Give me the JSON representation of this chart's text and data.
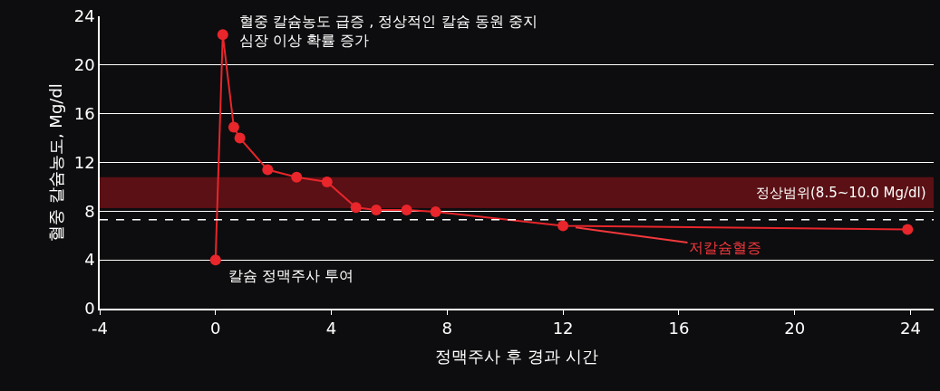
{
  "chart_data": {
    "type": "line",
    "xlabel": "정맥주사 후 경과 시간",
    "ylabel": "혈중 칼슘농도, Mg/dl",
    "x": [
      0,
      0.25,
      0.63,
      0.84,
      1.8,
      2.8,
      3.85,
      4.85,
      5.55,
      6.6,
      7.6,
      12,
      23.9
    ],
    "series": [
      {
        "color": "#e8262b",
        "values": [
          4,
          22.5,
          14.9,
          14.0,
          11.4,
          10.8,
          10.4,
          8.3,
          8.1,
          8.1,
          7.95,
          6.8,
          6.5
        ]
      }
    ],
    "xlim": [
      -4,
      24.8
    ],
    "ylim": [
      0,
      24
    ],
    "xticks": [
      -4,
      0,
      4,
      8,
      12,
      16,
      20,
      24
    ],
    "yticks": [
      0,
      4,
      8,
      12,
      16,
      20,
      24
    ],
    "grid": "y",
    "marker": "circle",
    "bands": [
      {
        "axis": "y",
        "from": 8.25,
        "to": 10.8,
        "label": "정상범위(8.5~10.0 Mg/dl)",
        "color": "#5a1014"
      }
    ],
    "ref_lines": [
      {
        "axis": "y",
        "value": 7.3,
        "color": "#ffffff",
        "line_style": "dashed"
      }
    ],
    "annotations": [
      {
        "text": "혈중 칼슘농도 급증 , 정상적인 칼슘 동원 중지\n심장 이상 확률 증가",
        "x": 0.25,
        "y": 22.5
      },
      {
        "text": "칼슘 정맥주사 투여",
        "x": 0,
        "y": 4
      },
      {
        "text": "저칼슘혈증",
        "x": 12,
        "y": 6.8
      }
    ]
  }
}
